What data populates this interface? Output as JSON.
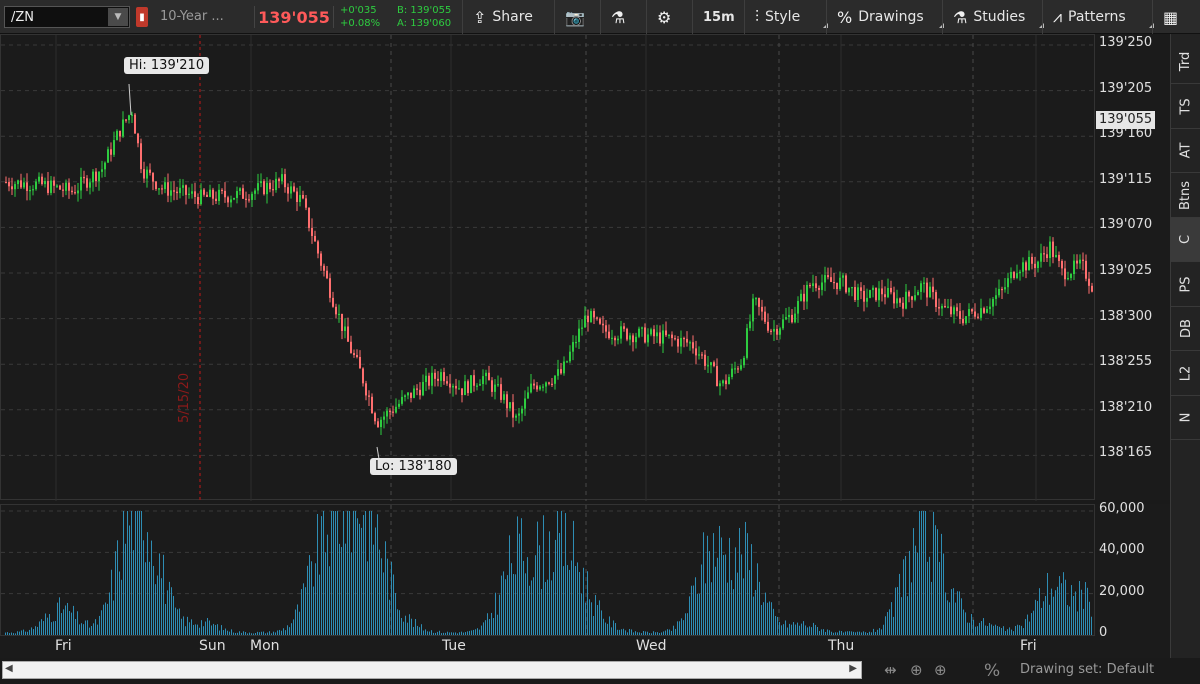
{
  "toolbar": {
    "symbol": "/ZN",
    "symbol_dropdown_icon": "caret-down",
    "description": "10-Year ...",
    "last_price": "139'055",
    "net_change": "+0'035",
    "percent_change": "+0.08%",
    "bid": "B: 139'055",
    "ask": "A: 139'060",
    "share_label": "Share",
    "aggregation": "15m",
    "style_label": "Style",
    "drawings_label": "Drawings",
    "studies_label": "Studies",
    "patterns_label": "Patterns",
    "icons": [
      "share-icon",
      "snapshot-icon",
      "flask-icon",
      "gear-icon",
      "candlestick-icon",
      "percent-icon",
      "studies-flask-icon",
      "patterns-icon",
      "grid-icon"
    ]
  },
  "chart_data": {
    "type": "candlestick",
    "symbol": "/ZN",
    "interval": "15m",
    "price_ticks": [
      "139'250",
      "139'205",
      "139'160",
      "139'115",
      "139'070",
      "139'025",
      "138'300",
      "138'255",
      "138'210",
      "138'165"
    ],
    "volume_ticks": [
      "60,000",
      "40,000",
      "20,000",
      "0"
    ],
    "time_labels": [
      "Fri",
      "Sun",
      "Mon",
      "Tue",
      "Wed",
      "Thu",
      "Fri"
    ],
    "current_price": "139'055",
    "high_label": "Hi: 139'210",
    "low_label": "Lo: 138'180",
    "date_marker": "5/15/20",
    "colors": {
      "up": "#2ecc40",
      "down": "#ff6f6f",
      "volume": "#2e8db4",
      "grid": "#3a3a3a",
      "date_line": "#8b1a1a"
    },
    "path": [
      [
        0,
        139.36
      ],
      [
        40,
        139.35
      ],
      [
        70,
        139.33
      ],
      [
        100,
        139.4
      ],
      [
        118,
        139.52
      ],
      [
        130,
        139.58
      ],
      [
        140,
        139.4
      ],
      [
        160,
        139.34
      ],
      [
        200,
        139.31
      ],
      [
        240,
        139.32
      ],
      [
        280,
        139.36
      ],
      [
        300,
        139.3
      ],
      [
        320,
        139.1
      ],
      [
        345,
        138.87
      ],
      [
        360,
        138.76
      ],
      [
        375,
        138.62
      ],
      [
        395,
        138.67
      ],
      [
        420,
        138.73
      ],
      [
        440,
        138.77
      ],
      [
        460,
        138.72
      ],
      [
        480,
        138.76
      ],
      [
        500,
        138.7
      ],
      [
        515,
        138.62
      ],
      [
        530,
        138.73
      ],
      [
        560,
        138.77
      ],
      [
        575,
        138.88
      ],
      [
        585,
        138.95
      ],
      [
        600,
        138.9
      ],
      [
        630,
        138.89
      ],
      [
        660,
        138.88
      ],
      [
        690,
        138.86
      ],
      [
        705,
        138.8
      ],
      [
        720,
        138.73
      ],
      [
        740,
        138.81
      ],
      [
        752,
        138.99
      ],
      [
        770,
        138.9
      ],
      [
        790,
        138.95
      ],
      [
        810,
        139.05
      ],
      [
        840,
        139.05
      ],
      [
        860,
        139.0
      ],
      [
        880,
        139.02
      ],
      [
        900,
        138.99
      ],
      [
        920,
        139.04
      ],
      [
        940,
        138.97
      ],
      [
        960,
        138.94
      ],
      [
        980,
        138.97
      ],
      [
        1000,
        139.02
      ],
      [
        1015,
        139.1
      ],
      [
        1035,
        139.11
      ],
      [
        1048,
        139.16
      ],
      [
        1060,
        139.08
      ],
      [
        1080,
        139.1
      ],
      [
        1090,
        139.04
      ]
    ],
    "volume_peaks": [
      [
        60,
        14000
      ],
      [
        130,
        58000
      ],
      [
        150,
        35000
      ],
      [
        200,
        6000
      ],
      [
        320,
        40000
      ],
      [
        345,
        50000
      ],
      [
        370,
        55000
      ],
      [
        400,
        6000
      ],
      [
        515,
        42000
      ],
      [
        545,
        32000
      ],
      [
        570,
        38000
      ],
      [
        600,
        5000
      ],
      [
        710,
        46000
      ],
      [
        745,
        42000
      ],
      [
        800,
        5000
      ],
      [
        915,
        44000
      ],
      [
        940,
        28000
      ],
      [
        980,
        5000
      ],
      [
        1050,
        26000
      ],
      [
        1085,
        18000
      ]
    ]
  },
  "sidebar": {
    "tabs": [
      "Trd",
      "TS",
      "AT",
      "Btns",
      "C",
      "PS",
      "DB",
      "L2",
      "N"
    ]
  },
  "bottom": {
    "drawing_set": "Drawing set: Default",
    "controls": [
      "drag-icon",
      "crosshair-icon",
      "zoom-icon",
      "percent-icon"
    ]
  }
}
